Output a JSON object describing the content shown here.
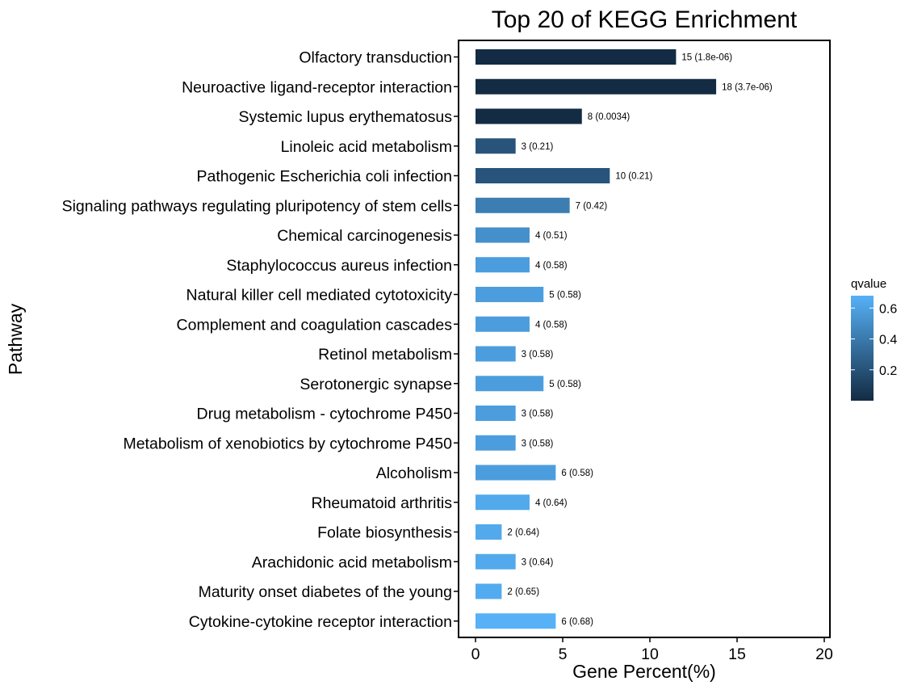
{
  "chart_data": {
    "type": "bar",
    "orientation": "horizontal",
    "title": "Top 20 of KEGG Enrichment",
    "xlabel": "Gene Percent(%)",
    "ylabel": "Pathway",
    "xlim": [
      0,
      20
    ],
    "xticks": [
      0,
      5,
      10,
      15,
      20
    ],
    "grid": false,
    "categories": [
      "Olfactory transduction",
      "Neuroactive ligand-receptor interaction",
      "Systemic lupus erythematosus",
      "Linoleic acid metabolism",
      "Pathogenic Escherichia coli infection",
      "Signaling pathways regulating pluripotency of stem cells",
      "Chemical carcinogenesis",
      "Staphylococcus aureus infection",
      "Natural killer cell mediated cytotoxicity",
      "Complement and coagulation cascades",
      "Retinol metabolism",
      "Serotonergic synapse",
      "Drug metabolism - cytochrome P450",
      "Metabolism of xenobiotics by cytochrome P450",
      "Alcoholism",
      "Rheumatoid arthritis",
      "Folate biosynthesis",
      "Arachidonic acid metabolism",
      "Maturity onset diabetes of the young",
      "Cytokine-cytokine receptor interaction"
    ],
    "values": [
      11.5,
      13.8,
      6.1,
      2.3,
      7.7,
      5.4,
      3.1,
      3.1,
      3.9,
      3.1,
      2.3,
      3.9,
      2.3,
      2.3,
      4.6,
      3.1,
      1.5,
      2.3,
      1.5,
      4.6
    ],
    "bar_labels": [
      "15 (1.8e-06)",
      "18 (3.7e-06)",
      "8 (0.0034)",
      "3 (0.21)",
      "10 (0.21)",
      "7 (0.42)",
      "4 (0.51)",
      "4 (0.58)",
      "5 (0.58)",
      "4 (0.58)",
      "3 (0.58)",
      "5 (0.58)",
      "3 (0.58)",
      "3 (0.58)",
      "6 (0.58)",
      "4 (0.64)",
      "2 (0.64)",
      "3 (0.64)",
      "2 (0.65)",
      "6 (0.68)"
    ],
    "qvalues": [
      1.8e-06,
      3.7e-06,
      0.0034,
      0.21,
      0.21,
      0.42,
      0.51,
      0.58,
      0.58,
      0.58,
      0.58,
      0.58,
      0.58,
      0.58,
      0.58,
      0.64,
      0.64,
      0.64,
      0.65,
      0.68
    ],
    "legend": {
      "title": "qvalue",
      "placement": "right",
      "ticks": [
        0.2,
        0.4,
        0.6
      ],
      "range": [
        1.8e-06,
        0.68
      ],
      "color_low": "#132b43",
      "color_high": "#56b1f7"
    }
  }
}
